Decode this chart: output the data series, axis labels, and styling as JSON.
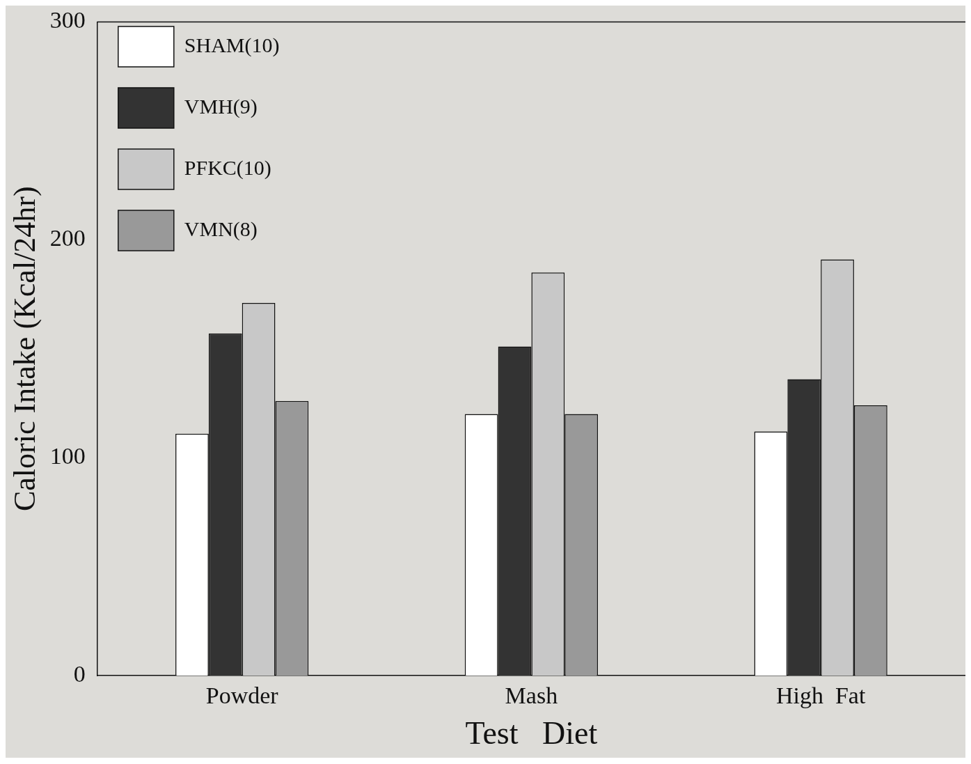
{
  "chart_data": {
    "type": "bar",
    "xlabel": "Test   Diet",
    "ylabel": "Caloric Intake (Kcal/24hr)",
    "categories": [
      "Powder",
      "Mash",
      "High  Fat"
    ],
    "series": [
      {
        "name": "SHAM(10)",
        "color": "#ffffff",
        "values": [
          111,
          120,
          112
        ]
      },
      {
        "name": "VMH(9)",
        "color": "#333333",
        "values": [
          157,
          151,
          136
        ]
      },
      {
        "name": "PFKC(10)",
        "color": "#c8c8c8",
        "values": [
          171,
          185,
          191
        ]
      },
      {
        "name": "VMN(8)",
        "color": "#999999",
        "values": [
          126,
          120,
          124
        ]
      }
    ],
    "ylim": [
      0,
      300
    ],
    "yticks": [
      0,
      100,
      200,
      300
    ],
    "grid": false,
    "legend": "top left"
  }
}
